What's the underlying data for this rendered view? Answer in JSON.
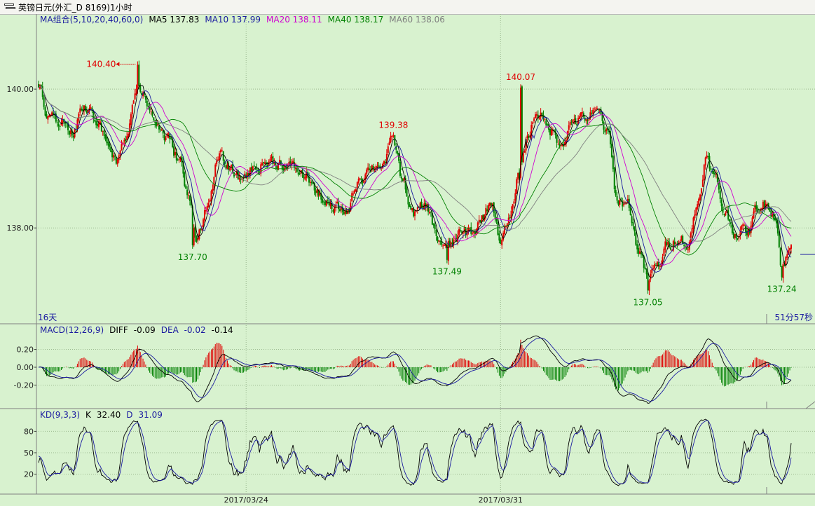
{
  "window": {
    "title": "英镑日元(外汇_D 8169)1小时"
  },
  "main_panel": {
    "legend": [
      {
        "label": "MA组合(5,10,20,40,60,0)",
        "color": "#1a1aa0"
      },
      {
        "label": "MA5 137.83",
        "color": "#000000"
      },
      {
        "label": "MA10 137.99",
        "color": "#1a1aa0"
      },
      {
        "label": "MA20 138.11",
        "color": "#d000d0"
      },
      {
        "label": "MA40 138.17",
        "color": "#008000"
      },
      {
        "label": "MA60 138.06",
        "color": "#808080"
      }
    ],
    "bottom_left_text": "16天",
    "bottom_right_text": "51分57秒"
  },
  "macd_panel": {
    "legend": [
      {
        "label": "MACD(12,26,9)",
        "color": "#1a1aa0"
      },
      {
        "label": "DIFF",
        "color": "#000000"
      },
      {
        "label": "-0.09",
        "color": "#000000"
      },
      {
        "label": "DEA",
        "color": "#1a1aa0"
      },
      {
        "label": "-0.02",
        "color": "#1a1aa0"
      },
      {
        "label": "-0.14",
        "color": "#000000"
      }
    ]
  },
  "kd_panel": {
    "legend": [
      {
        "label": "KD(9,3,3)",
        "color": "#1a1aa0"
      },
      {
        "label": "K",
        "color": "#000000"
      },
      {
        "label": "32.40",
        "color": "#000000"
      },
      {
        "label": "D",
        "color": "#1a1aa0"
      },
      {
        "label": "31.09",
        "color": "#1a1aa0"
      }
    ]
  },
  "chart_data": [
    {
      "type": "candlestick",
      "panel": "price",
      "ylim": [
        136.72,
        140.88
      ],
      "yticks": [
        {
          "value": 140.0,
          "label": "140.00"
        },
        {
          "value": 138.0,
          "label": "138.00"
        }
      ],
      "xticks": [
        {
          "index": 155,
          "label": "2017/03/24"
        },
        {
          "index": 345,
          "label": "2017/03/31"
        }
      ],
      "annotations": [
        {
          "index": 74,
          "value": 140.4,
          "label": "140.40",
          "color": "#e00000",
          "arrow": true
        },
        {
          "index": 115,
          "value": 137.7,
          "label": "137.70",
          "color": "#008000"
        },
        {
          "index": 265,
          "value": 139.38,
          "label": "139.38",
          "color": "#e00000"
        },
        {
          "index": 305,
          "value": 137.49,
          "label": "137.49",
          "color": "#008000"
        },
        {
          "index": 360,
          "value": 140.07,
          "label": "140.07",
          "color": "#e00000"
        },
        {
          "index": 455,
          "value": 137.05,
          "label": "137.05",
          "color": "#008000"
        },
        {
          "index": 555,
          "value": 137.24,
          "label": "137.24",
          "color": "#008000"
        }
      ],
      "colors": {
        "up": "#e00000",
        "down": "#008000"
      },
      "anchors": [
        [
          0,
          140.1
        ],
        [
          6,
          139.7
        ],
        [
          14,
          139.55
        ],
        [
          25,
          139.4
        ],
        [
          35,
          139.75
        ],
        [
          45,
          139.5
        ],
        [
          50,
          139.3
        ],
        [
          58,
          138.95
        ],
        [
          66,
          139.25
        ],
        [
          74,
          140.15
        ],
        [
          80,
          139.85
        ],
        [
          88,
          139.5
        ],
        [
          95,
          139.3
        ],
        [
          105,
          139.0
        ],
        [
          112,
          138.4
        ],
        [
          118,
          137.9
        ],
        [
          125,
          138.25
        ],
        [
          135,
          139.0
        ],
        [
          145,
          138.8
        ],
        [
          150,
          138.7
        ],
        [
          160,
          138.85
        ],
        [
          170,
          138.95
        ],
        [
          180,
          138.95
        ],
        [
          190,
          138.85
        ],
        [
          200,
          138.75
        ],
        [
          210,
          138.45
        ],
        [
          220,
          138.25
        ],
        [
          230,
          138.25
        ],
        [
          240,
          138.75
        ],
        [
          250,
          138.9
        ],
        [
          258,
          138.95
        ],
        [
          265,
          139.25
        ],
        [
          272,
          138.65
        ],
        [
          280,
          138.2
        ],
        [
          290,
          138.3
        ],
        [
          298,
          137.85
        ],
        [
          305,
          137.7
        ],
        [
          315,
          137.9
        ],
        [
          325,
          137.95
        ],
        [
          333,
          138.2
        ],
        [
          338,
          138.4
        ],
        [
          345,
          137.85
        ],
        [
          352,
          138.1
        ],
        [
          358,
          138.7
        ],
        [
          365,
          139.3
        ],
        [
          372,
          139.7
        ],
        [
          380,
          139.45
        ],
        [
          390,
          139.25
        ],
        [
          400,
          139.55
        ],
        [
          410,
          139.6
        ],
        [
          418,
          139.65
        ],
        [
          425,
          139.35
        ],
        [
          432,
          138.4
        ],
        [
          440,
          138.35
        ],
        [
          448,
          137.7
        ],
        [
          455,
          137.25
        ],
        [
          462,
          137.45
        ],
        [
          470,
          137.75
        ],
        [
          478,
          137.9
        ],
        [
          485,
          137.75
        ],
        [
          492,
          138.35
        ],
        [
          498,
          139.0
        ],
        [
          505,
          138.7
        ],
        [
          512,
          138.25
        ],
        [
          520,
          137.95
        ],
        [
          530,
          137.95
        ],
        [
          537,
          138.3
        ],
        [
          545,
          138.35
        ],
        [
          550,
          138.2
        ],
        [
          555,
          137.45
        ],
        [
          562,
          137.7
        ]
      ]
    },
    {
      "type": "bar+line",
      "panel": "macd",
      "ylim": [
        -0.44,
        0.44
      ],
      "yticks": [
        {
          "value": 0.2,
          "label": "0.20"
        },
        {
          "value": 0.0,
          "label": "0.00"
        },
        {
          "value": -0.2,
          "label": "-0.20"
        }
      ]
    },
    {
      "type": "line",
      "panel": "kd",
      "ylim": [
        0,
        100
      ],
      "yticks": [
        {
          "value": 80,
          "label": "80"
        },
        {
          "value": 50,
          "label": "50"
        },
        {
          "value": 20,
          "label": "20"
        }
      ]
    }
  ]
}
